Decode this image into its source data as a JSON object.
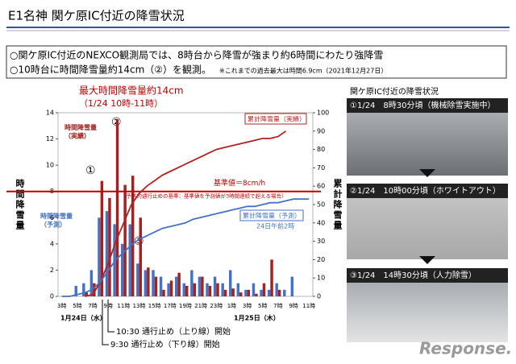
{
  "header": {
    "title": "E1名神 関ケ原IC付近の降雪状況"
  },
  "summary": {
    "line1": "○関ケ原IC付近のNEXCO観測局では、8時台から降雪が強まり約6時間にわたり強降雪",
    "line2": "○10時台に時間降雪量約14cm（②）を観測。",
    "note": "※これまでの過去最大は時間6.9cm（2021年12月27日）"
  },
  "chart_data": {
    "type": "bar",
    "title": "最大時間降雪量約14cm",
    "subtitle": "（1/24 10時-11時）",
    "y_label": "時間降雪量",
    "y2_label": "累計降雪量",
    "categories": [
      "3時",
      null,
      "5時",
      null,
      "7時",
      null,
      "9時",
      null,
      "11時",
      null,
      "13時",
      null,
      "15時",
      null,
      "17時",
      null,
      "19時",
      null,
      "21時",
      null,
      "23時",
      null,
      "1時",
      null,
      "3時",
      null,
      "5時",
      null,
      "7時",
      null,
      "9時",
      null,
      "11時"
    ],
    "date_labels": [
      "1月24日（水）",
      "1月25日（木）"
    ],
    "ylim": [
      0,
      14
    ],
    "yticks": [
      0,
      2,
      4,
      6,
      8,
      10,
      12,
      14
    ],
    "y2lim": [
      0,
      100
    ],
    "y2ticks": [
      0,
      10,
      20,
      30,
      40,
      50,
      60,
      70,
      80,
      90,
      100
    ],
    "series": [
      {
        "name": "時間降雪量（予測）",
        "color": "#4472c4",
        "kind": "bar",
        "values": [
          0,
          0,
          0.8,
          1,
          2,
          6,
          6.5,
          5.5,
          4,
          5.5,
          2.5,
          2,
          2,
          1.5,
          1,
          1.5,
          1,
          2,
          1.5,
          1,
          1.5,
          1,
          2,
          1,
          0.5,
          1,
          0.5,
          0.5,
          1,
          0.5,
          1.5,
          0,
          0
        ]
      },
      {
        "name": "時間降雪量（実績）",
        "color": "#a5201e",
        "kind": "bar",
        "values": [
          0,
          0,
          0,
          0.3,
          1,
          8.8,
          7.5,
          13.5,
          8.5,
          9.2,
          6,
          2.2,
          1.5,
          0.5,
          1.2,
          1.8,
          0.8,
          1,
          1.5,
          0.8,
          1,
          0.5,
          0.6,
          0.3,
          0.5,
          0.2,
          1,
          2.8,
          0.5,
          0,
          0,
          0,
          0
        ]
      },
      {
        "name": "累計降雪量（実績）",
        "color": "#b22222",
        "kind": "line",
        "axis": "y2",
        "values": [
          null,
          null,
          null,
          0,
          1,
          8,
          18,
          30,
          40,
          50,
          56,
          60,
          63,
          66,
          68,
          70,
          72,
          74,
          76,
          78,
          80,
          81,
          82,
          83,
          84,
          85,
          86,
          86,
          87,
          90,
          null,
          null,
          null
        ]
      },
      {
        "name": "累計降雪量（予測）",
        "color": "#4472c4",
        "kind": "line",
        "axis": "y2",
        "values": [
          0,
          0,
          1,
          2,
          4,
          8,
          14,
          20,
          24,
          28,
          31,
          33,
          35,
          37,
          38,
          39,
          40,
          42,
          43,
          44,
          45,
          46,
          47,
          48,
          49,
          49,
          50,
          51,
          51,
          52,
          53,
          53,
          53
        ]
      }
    ],
    "reference_line": {
      "value": 8,
      "label": "基準値＝8cm/h",
      "note": "（予防的通行止めの基準：基準値を予測値が3時間連続で超える場合）",
      "color": "#c00000"
    },
    "annotations": [
      "①",
      "②",
      "③",
      "24日午前2時",
      "10:30 通行止め（上り線）開始",
      "9:30 通行止め（下り線）開始"
    ]
  },
  "photos": {
    "title": "関ケ原IC付近の降雪状況",
    "captions": [
      "①1/24　8時30分頃（機械除雪実施中）",
      "②1/24　10時00分頃（ホワイトアウト）",
      "③1/24　14時30分頃（人力除雪）"
    ]
  },
  "watermark": "Response."
}
